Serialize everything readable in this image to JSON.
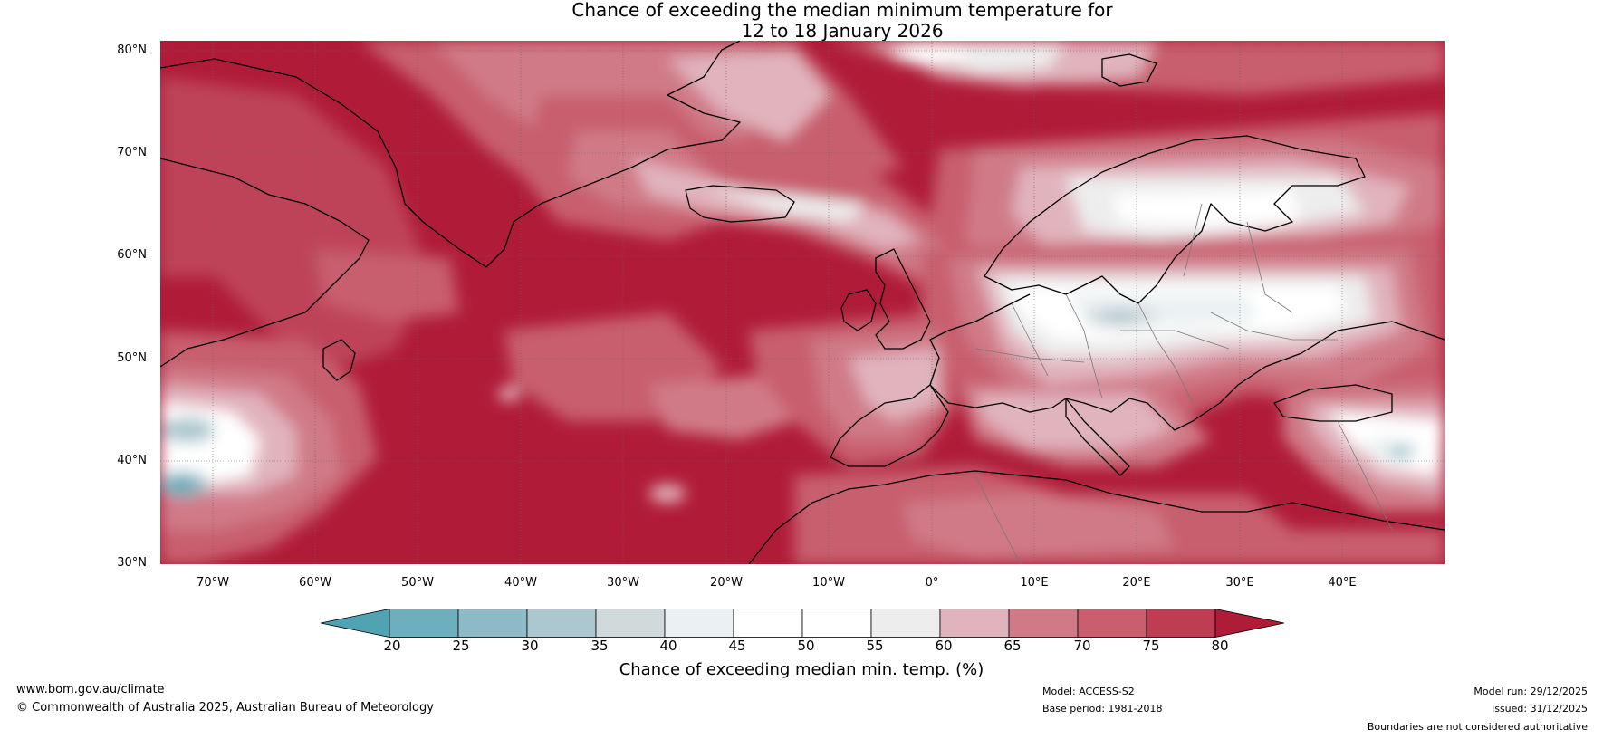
{
  "title": {
    "line1": "Chance of exceeding the median minimum temperature for",
    "line2": "12 to 18 January 2026"
  },
  "map": {
    "lat_labels": [
      "80°N",
      "70°N",
      "60°N",
      "50°N",
      "40°N",
      "30°N"
    ],
    "lon_labels": [
      "70°W",
      "60°W",
      "50°W",
      "40°W",
      "30°W",
      "20°W",
      "10°W",
      "0°",
      "10°E",
      "20°E",
      "30°E",
      "40°E"
    ],
    "lat_range": [
      30,
      81
    ],
    "lon_range": [
      -75,
      50
    ],
    "region": "North Atlantic, Greenland and Europe"
  },
  "colorbar": {
    "ticks": [
      "20",
      "25",
      "30",
      "35",
      "40",
      "45",
      "50",
      "55",
      "60",
      "65",
      "70",
      "75",
      "80"
    ],
    "colors": [
      "#4fa3b3",
      "#6eafbd",
      "#8cbac6",
      "#acc7cf",
      "#d0dadc",
      "#ebf1f3",
      "#ffffff",
      "#ffffff",
      "#ededed",
      "#e1b4bd",
      "#d07a88",
      "#c85e6e",
      "#be3d52",
      "#b01c38"
    ],
    "label": "Chance of exceeding median min. temp. (%)"
  },
  "footer": {
    "url": "www.bom.gov.au/climate",
    "copyright": "© Commonwealth of Australia 2025, Australian Bureau of Meteorology",
    "model": "Model: ACCESS-S2",
    "base_period": "Base period: 1981-2018",
    "model_run": "Model run: 29/12/2025",
    "issued": "Issued: 31/12/2025",
    "disclaimer": "Boundaries are not considered authoritative"
  }
}
